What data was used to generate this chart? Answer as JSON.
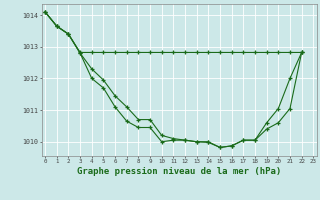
{
  "bg_color": "#cce8e8",
  "grid_color": "#ffffff",
  "line_color": "#1a6b1a",
  "xlabel": "Graphe pression niveau de la mer (hPa)",
  "xlabel_fontsize": 6.5,
  "yticks": [
    1010,
    1011,
    1012,
    1013,
    1014
  ],
  "xticks": [
    0,
    1,
    2,
    3,
    4,
    5,
    6,
    7,
    8,
    9,
    10,
    11,
    12,
    13,
    14,
    15,
    16,
    17,
    18,
    19,
    20,
    21,
    22,
    23
  ],
  "xlim": [
    -0.3,
    23.3
  ],
  "ylim": [
    1009.55,
    1014.35
  ],
  "series1_x": [
    0,
    1,
    2,
    3,
    4,
    5,
    6,
    7,
    8,
    9,
    10,
    11,
    12,
    13,
    14,
    15,
    16,
    17,
    18,
    19,
    20,
    21,
    22
  ],
  "series1_y": [
    1014.1,
    1013.65,
    1013.4,
    1012.8,
    1012.0,
    1011.7,
    1011.1,
    1010.65,
    1010.45,
    1010.45,
    1010.0,
    1010.05,
    1010.05,
    1010.0,
    1009.98,
    1009.82,
    1009.87,
    1010.05,
    1010.05,
    1010.6,
    1011.05,
    1012.0,
    1012.82
  ],
  "series2_x": [
    0,
    1,
    2,
    3,
    4,
    5,
    6,
    7,
    8,
    9,
    10,
    11,
    12,
    13,
    14,
    15,
    16,
    17,
    18,
    19,
    20,
    21,
    22
  ],
  "series2_y": [
    1014.1,
    1013.65,
    1013.4,
    1012.82,
    1012.82,
    1012.82,
    1012.82,
    1012.82,
    1012.82,
    1012.82,
    1012.82,
    1012.82,
    1012.82,
    1012.82,
    1012.82,
    1012.82,
    1012.82,
    1012.82,
    1012.82,
    1012.82,
    1012.82,
    1012.82,
    1012.82
  ],
  "series3_x": [
    0,
    1,
    2,
    3,
    4,
    5,
    6,
    7,
    8,
    9,
    10,
    11,
    12,
    13,
    14,
    15,
    16,
    17,
    18,
    19,
    20,
    21,
    22
  ],
  "series3_y": [
    1014.1,
    1013.65,
    1013.4,
    1012.8,
    1012.3,
    1011.95,
    1011.45,
    1011.1,
    1010.7,
    1010.7,
    1010.2,
    1010.1,
    1010.05,
    1010.0,
    1010.0,
    1009.82,
    1009.87,
    1010.05,
    1010.05,
    1010.4,
    1010.6,
    1011.05,
    1012.82
  ]
}
